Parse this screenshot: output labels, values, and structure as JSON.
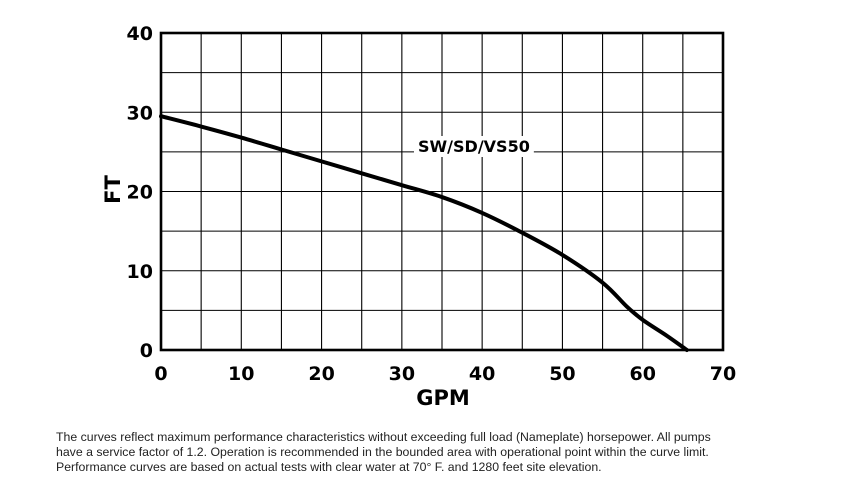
{
  "chart_data": {
    "type": "line",
    "title": "",
    "xlabel": "GPM",
    "ylabel": "FT",
    "xlim": [
      0,
      70
    ],
    "ylim": [
      0,
      40
    ],
    "x_ticks": [
      "0",
      "10",
      "20",
      "30",
      "40",
      "50",
      "60",
      "70"
    ],
    "y_ticks": [
      "0",
      "10",
      "20",
      "30",
      "40"
    ],
    "grid": true,
    "series": [
      {
        "name": "SW/SD/VS50",
        "x": [
          0,
          5,
          10,
          15,
          20,
          25,
          30,
          35,
          40,
          45,
          50,
          55,
          58,
          60,
          63,
          65.5
        ],
        "y": [
          29.5,
          28.2,
          26.8,
          25.3,
          23.8,
          22.3,
          20.8,
          19.3,
          17.3,
          14.8,
          12.0,
          8.5,
          5.5,
          3.8,
          1.8,
          0
        ]
      }
    ]
  },
  "caption": {
    "lines": [
      "The curves reflect maximum performance characteristics without exceeding full load (Nameplate) horsepower. All pumps",
      "have a service factor of 1.2. Operation is recommended in the bounded area with operational point within the curve limit.",
      "Performance curves are based on actual tests with clear water at 70° F. and 1280 feet site elevation."
    ]
  },
  "colors": {
    "line": "#000000",
    "grid": "#000000",
    "text": "#000000"
  }
}
